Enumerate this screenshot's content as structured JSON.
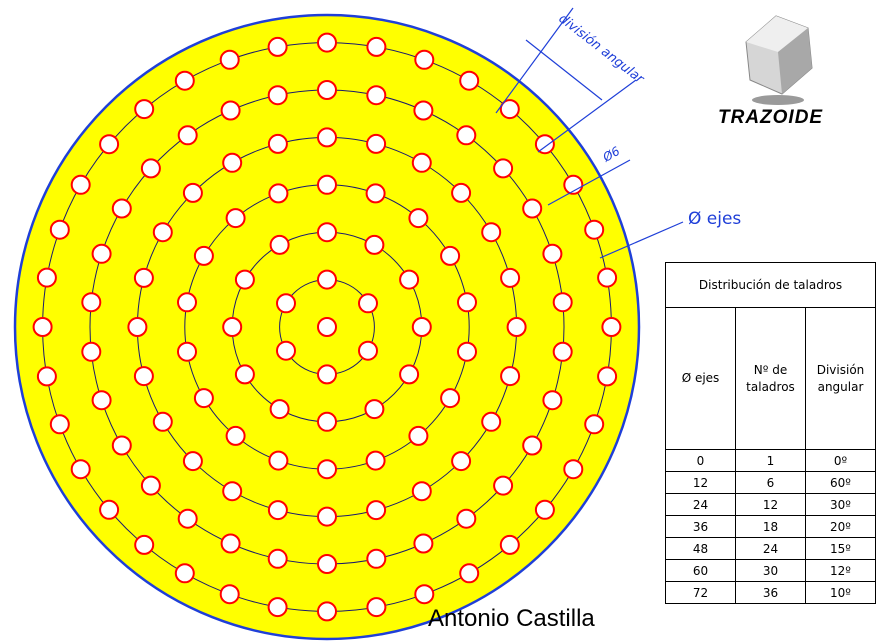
{
  "diagram": {
    "outer_circle_color": "#1f3fd8",
    "fill_color": "#ffff00",
    "hole_color": "#ff0000",
    "axis_circle_color": "#1a1a6e",
    "labels": {
      "division_angular": "división angular",
      "hole_diameter": "Ø6",
      "axes_diameter": "Ø ejes"
    }
  },
  "logo": {
    "text": "TRAZOIDE",
    "icon": "cube-icon"
  },
  "author": "Antonio  Castilla",
  "table": {
    "title": "Distribución de taladros",
    "headers": [
      "Ø ejes",
      "Nº de taladros",
      "División angular"
    ],
    "rows": [
      {
        "diam": "0",
        "count": "1",
        "angle": "0º"
      },
      {
        "diam": "12",
        "count": "6",
        "angle": "60º"
      },
      {
        "diam": "24",
        "count": "12",
        "angle": "30º"
      },
      {
        "diam": "36",
        "count": "18",
        "angle": "20º"
      },
      {
        "diam": "48",
        "count": "24",
        "angle": "15º"
      },
      {
        "diam": "60",
        "count": "30",
        "angle": "12º"
      },
      {
        "diam": "72",
        "count": "36",
        "angle": "10º"
      }
    ]
  }
}
